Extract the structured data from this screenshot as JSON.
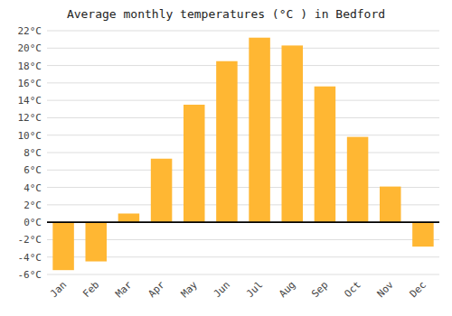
{
  "chart_data": {
    "type": "bar",
    "title": "Average monthly temperatures (°C ) in Bedford",
    "categories": [
      "Jan",
      "Feb",
      "Mar",
      "Apr",
      "May",
      "Jun",
      "Jul",
      "Aug",
      "Sep",
      "Oct",
      "Nov",
      "Dec"
    ],
    "values": [
      -5.5,
      -4.5,
      1.0,
      7.3,
      13.5,
      18.5,
      21.2,
      20.3,
      15.6,
      9.8,
      4.1,
      -2.8
    ],
    "color": "#FFB733",
    "ylim": [
      -6,
      22
    ],
    "yticks": [
      {
        "value": -6,
        "label": "-6°C"
      },
      {
        "value": -4,
        "label": "-4°C"
      },
      {
        "value": -2,
        "label": "-2°C"
      },
      {
        "value": 0,
        "label": "0°C"
      },
      {
        "value": 2,
        "label": "2°C"
      },
      {
        "value": 4,
        "label": "4°C"
      },
      {
        "value": 6,
        "label": "6°C"
      },
      {
        "value": 8,
        "label": "8°C"
      },
      {
        "value": 10,
        "label": "10°C"
      },
      {
        "value": 12,
        "label": "12°C"
      },
      {
        "value": 14,
        "label": "14°C"
      },
      {
        "value": 16,
        "label": "16°C"
      },
      {
        "value": 18,
        "label": "18°C"
      },
      {
        "value": 20,
        "label": "20°C"
      },
      {
        "value": 22,
        "label": "22°C"
      }
    ],
    "grid": true
  }
}
